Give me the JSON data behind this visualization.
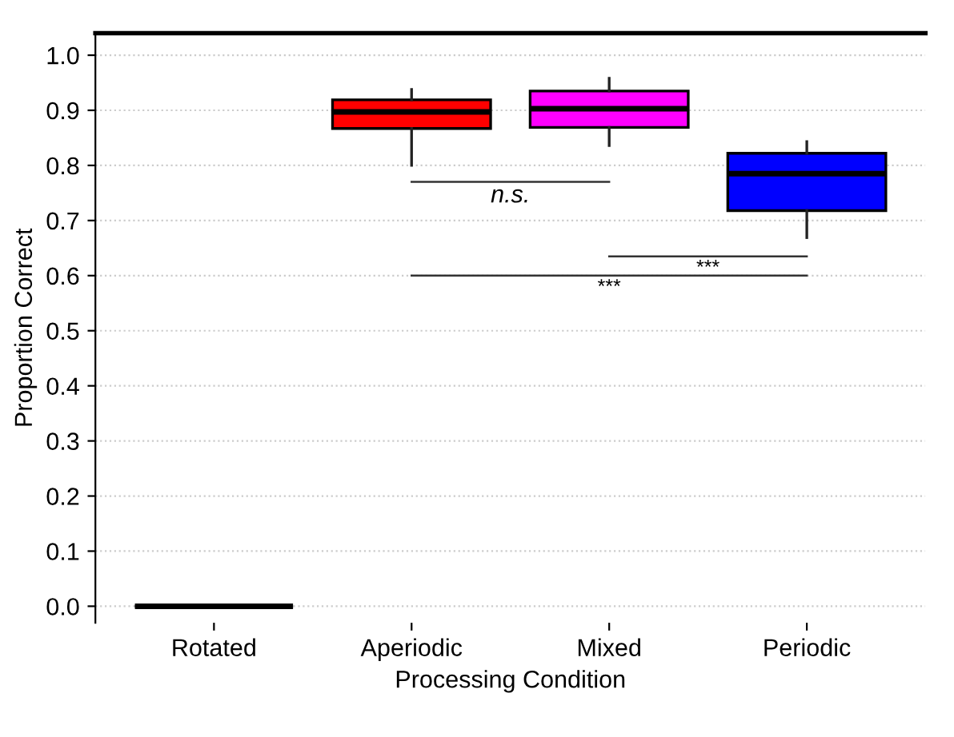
{
  "chart_data": {
    "type": "box",
    "xlabel": "Processing Condition",
    "ylabel": "Proportion Correct",
    "categories": [
      "Rotated",
      "Aperiodic",
      "Mixed",
      "Periodic"
    ],
    "colors": [
      "#000000",
      "#ff0000",
      "#ff00ff",
      "#0000ff"
    ],
    "boxes": [
      {
        "low": 0,
        "q1": 0,
        "median": 0,
        "q3": 0,
        "high": 0
      },
      {
        "low": 0.8,
        "q1": 0.867,
        "median": 0.897,
        "q3": 0.919,
        "high": 0.938
      },
      {
        "low": 0.836,
        "q1": 0.869,
        "median": 0.903,
        "q3": 0.935,
        "high": 0.958
      },
      {
        "low": 0.669,
        "q1": 0.718,
        "median": 0.785,
        "q3": 0.822,
        "high": 0.843
      }
    ],
    "ylim": [
      -0.03,
      1.04
    ],
    "yticks": [
      {
        "value": 0,
        "label": "0.0"
      },
      {
        "value": 0.1,
        "label": "0.1"
      },
      {
        "value": 0.2,
        "label": "0.2"
      },
      {
        "value": 0.3,
        "label": "0.3"
      },
      {
        "value": 0.4,
        "label": "0.4"
      },
      {
        "value": 0.5,
        "label": "0.5"
      },
      {
        "value": 0.6,
        "label": "0.6"
      },
      {
        "value": 0.7,
        "label": "0.7"
      },
      {
        "value": 0.8,
        "label": "0.8"
      },
      {
        "value": 0.9,
        "label": "0.9"
      },
      {
        "value": 1.0,
        "label": "1.0"
      }
    ],
    "grid": "y",
    "annotations": [
      "n.s.",
      "***",
      "***"
    ]
  }
}
